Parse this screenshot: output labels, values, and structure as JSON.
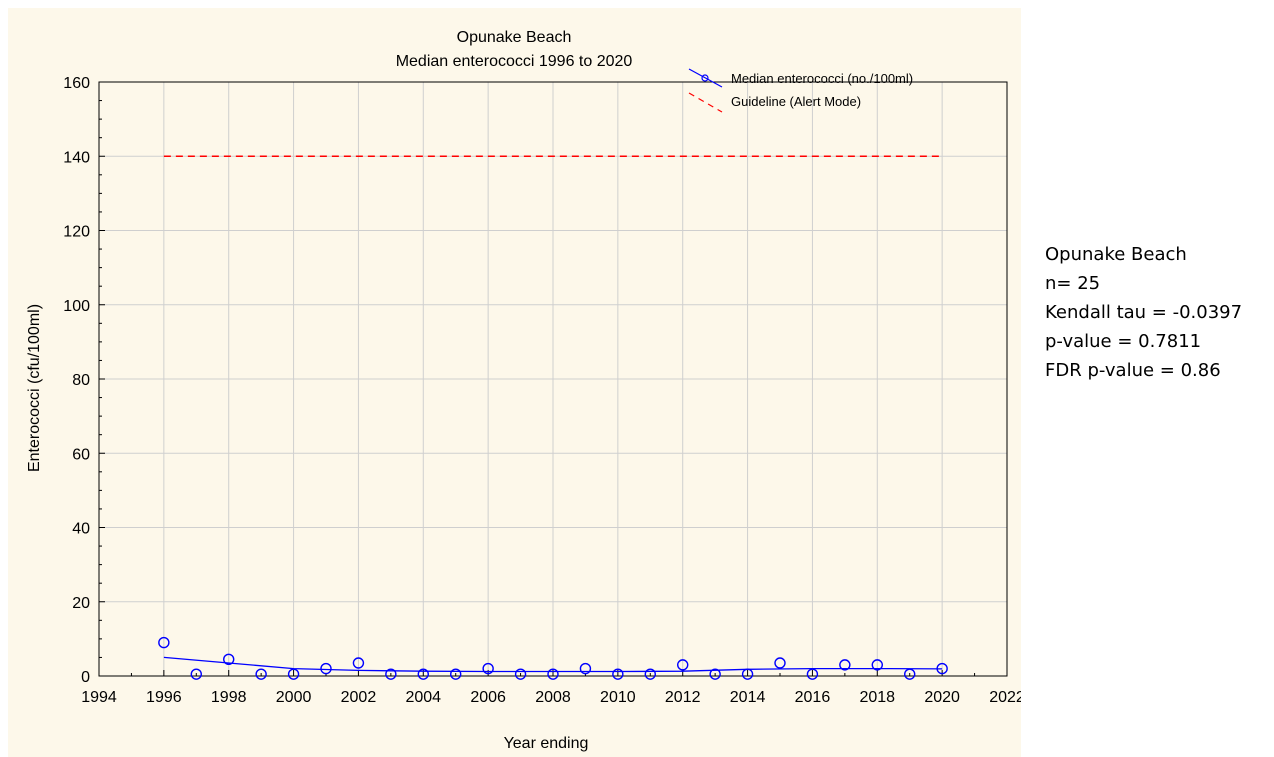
{
  "chart_data": {
    "type": "scatter",
    "title": "Opunake Beach",
    "subtitle": "Median enterococci 1996 to 2020",
    "xlabel": "Year ending",
    "ylabel": "Enterococci (cfu/100ml)",
    "xlim": [
      1994,
      2022
    ],
    "ylim": [
      0,
      160
    ],
    "x_ticks": [
      "1994",
      "1996",
      "1998",
      "2000",
      "2002",
      "2004",
      "2006",
      "2008",
      "2010",
      "2012",
      "2014",
      "2016",
      "2018",
      "2020",
      "2022"
    ],
    "y_ticks": [
      "0",
      "20",
      "40",
      "60",
      "80",
      "100",
      "120",
      "140",
      "160"
    ],
    "grid": true,
    "legend_position": "top-right",
    "series": [
      {
        "name": "Median enterococci (no./100ml)",
        "color": "#0000ff",
        "marker": "open-circle",
        "x": [
          1996,
          1997,
          1998,
          1999,
          2000,
          2001,
          2002,
          2003,
          2004,
          2005,
          2006,
          2007,
          2008,
          2009,
          2010,
          2011,
          2012,
          2013,
          2014,
          2015,
          2016,
          2017,
          2018,
          2019,
          2020
        ],
        "y": [
          9,
          0.5,
          4.5,
          0.5,
          0.5,
          2,
          3.5,
          0.5,
          0.5,
          0.5,
          2,
          0.5,
          0.5,
          2,
          0.5,
          0.5,
          3,
          0.5,
          0.5,
          3.5,
          0.5,
          3,
          3,
          0.5,
          2
        ],
        "smooth_x": [
          1996,
          1998,
          2000,
          2002,
          2004,
          2006,
          2008,
          2010,
          2012,
          2014,
          2016,
          2018,
          2020
        ],
        "smooth_y": [
          5,
          3.5,
          2,
          1.5,
          1.3,
          1.2,
          1.2,
          1.2,
          1.3,
          1.8,
          2,
          2,
          1.9
        ]
      },
      {
        "name": "Guideline (Alert Mode)",
        "color": "#ff0000",
        "line_style": "dashed",
        "x": [
          1996,
          2020
        ],
        "y": [
          140,
          140
        ]
      }
    ]
  },
  "stats": {
    "site": "Opunake Beach",
    "n": "n= 25",
    "kendall": "Kendall tau = -0.0397",
    "p_value": "p-value = 0.7811",
    "fdr": "FDR p-value = 0.86"
  }
}
